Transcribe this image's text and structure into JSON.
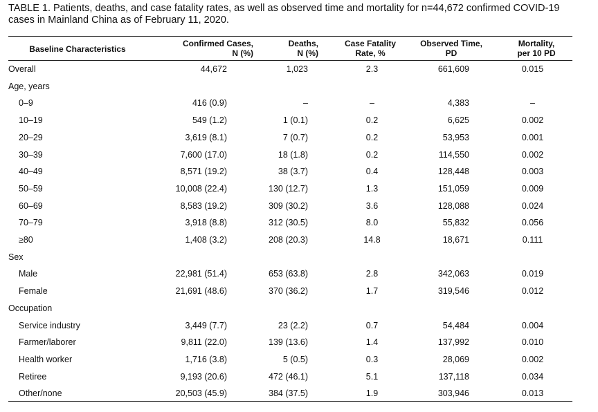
{
  "caption": {
    "line1": "TABLE 1. Patients, deaths, and case fatality rates, as well as observed time and mortality for n=44,672 confirmed COVID-19",
    "line2": "cases in Mainland China as of February 11, 2020."
  },
  "headers": {
    "col0": "Baseline Characteristics",
    "col1": [
      "Confirmed Cases,",
      "N (%)"
    ],
    "col2": [
      "Deaths,",
      "N (%)"
    ],
    "col3": [
      "Case Fatality",
      "Rate, %"
    ],
    "col4": [
      "Observed Time,",
      "PD"
    ],
    "col5": [
      "Mortality,",
      "per 10 PD"
    ]
  },
  "rows": [
    {
      "label": "Overall",
      "sub": false,
      "cells": [
        "44,672",
        "1,023",
        "2.3",
        "661,609",
        "0.015"
      ]
    },
    {
      "label": "Age, years",
      "sub": false,
      "cells": [
        "",
        "",
        "",
        "",
        ""
      ]
    },
    {
      "label": "0–9",
      "sub": true,
      "cells": [
        "416 (0.9)",
        "–",
        "–",
        "4,383",
        "–"
      ]
    },
    {
      "label": "10–19",
      "sub": true,
      "cells": [
        "549 (1.2)",
        "1 (0.1)",
        "0.2",
        "6,625",
        "0.002"
      ]
    },
    {
      "label": "20–29",
      "sub": true,
      "cells": [
        "3,619 (8.1)",
        "7 (0.7)",
        "0.2",
        "53,953",
        "0.001"
      ]
    },
    {
      "label": "30–39",
      "sub": true,
      "cells": [
        "7,600 (17.0)",
        "18 (1.8)",
        "0.2",
        "114,550",
        "0.002"
      ]
    },
    {
      "label": "40–49",
      "sub": true,
      "cells": [
        "8,571 (19.2)",
        "38 (3.7)",
        "0.4",
        "128,448",
        "0.003"
      ]
    },
    {
      "label": "50–59",
      "sub": true,
      "cells": [
        "10,008 (22.4)",
        "130 (12.7)",
        "1.3",
        "151,059",
        "0.009"
      ]
    },
    {
      "label": "60–69",
      "sub": true,
      "cells": [
        "8,583 (19.2)",
        "309 (30.2)",
        "3.6",
        "128,088",
        "0.024"
      ]
    },
    {
      "label": "70–79",
      "sub": true,
      "cells": [
        "3,918 (8.8)",
        "312 (30.5)",
        "8.0",
        "55,832",
        "0.056"
      ]
    },
    {
      "label": "≥80",
      "sub": true,
      "cells": [
        "1,408 (3.2)",
        "208 (20.3)",
        "14.8",
        "18,671",
        "0.111"
      ]
    },
    {
      "label": "Sex",
      "sub": false,
      "cells": [
        "",
        "",
        "",
        "",
        ""
      ]
    },
    {
      "label": "Male",
      "sub": true,
      "cells": [
        "22,981 (51.4)",
        "653 (63.8)",
        "2.8",
        "342,063",
        "0.019"
      ]
    },
    {
      "label": "Female",
      "sub": true,
      "cells": [
        "21,691 (48.6)",
        "370 (36.2)",
        "1.7",
        "319,546",
        "0.012"
      ]
    },
    {
      "label": "Occupation",
      "sub": false,
      "cells": [
        "",
        "",
        "",
        "",
        ""
      ]
    },
    {
      "label": "Service industry",
      "sub": true,
      "cells": [
        "3,449 (7.7)",
        "23 (2.2)",
        "0.7",
        "54,484",
        "0.004"
      ]
    },
    {
      "label": "Farmer/laborer",
      "sub": true,
      "cells": [
        "9,811 (22.0)",
        "139 (13.6)",
        "1.4",
        "137,992",
        "0.010"
      ]
    },
    {
      "label": "Health worker",
      "sub": true,
      "cells": [
        "1,716 (3.8)",
        "5 (0.5)",
        "0.3",
        "28,069",
        "0.002"
      ]
    },
    {
      "label": "Retiree",
      "sub": true,
      "cells": [
        "9,193 (20.6)",
        "472 (46.1)",
        "5.1",
        "137,118",
        "0.034"
      ]
    },
    {
      "label": "Other/none",
      "sub": true,
      "cells": [
        "20,503 (45.9)",
        "384 (37.5)",
        "1.9",
        "303,946",
        "0.013"
      ]
    }
  ]
}
